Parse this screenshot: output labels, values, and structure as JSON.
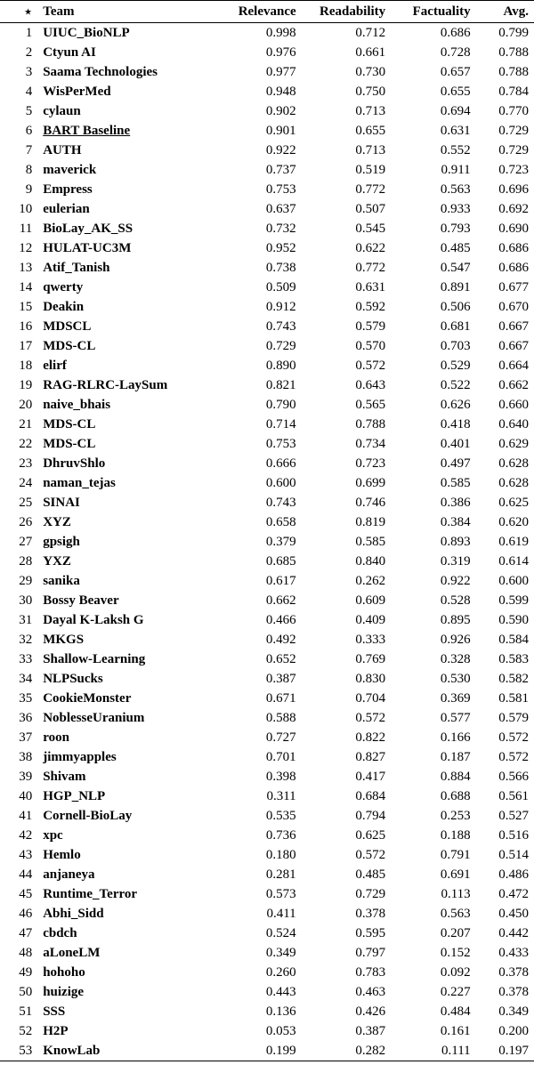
{
  "headers": {
    "rank": "⋆",
    "team": "Team",
    "relevance": "Relevance",
    "readability": "Readability",
    "factuality": "Factuality",
    "avg": "Avg."
  },
  "rows": [
    {
      "rank": "1",
      "team": "UIUC_BioNLP",
      "relevance": "0.998",
      "readability": "0.712",
      "factuality": "0.686",
      "avg": "0.799",
      "baseline": false
    },
    {
      "rank": "2",
      "team": "Ctyun AI",
      "relevance": "0.976",
      "readability": "0.661",
      "factuality": "0.728",
      "avg": "0.788",
      "baseline": false
    },
    {
      "rank": "3",
      "team": "Saama Technologies",
      "relevance": "0.977",
      "readability": "0.730",
      "factuality": "0.657",
      "avg": "0.788",
      "baseline": false
    },
    {
      "rank": "4",
      "team": "WisPerMed",
      "relevance": "0.948",
      "readability": "0.750",
      "factuality": "0.655",
      "avg": "0.784",
      "baseline": false
    },
    {
      "rank": "5",
      "team": "cylaun",
      "relevance": "0.902",
      "readability": "0.713",
      "factuality": "0.694",
      "avg": "0.770",
      "baseline": false
    },
    {
      "rank": "6",
      "team": "BART Baseline",
      "relevance": "0.901",
      "readability": "0.655",
      "factuality": "0.631",
      "avg": "0.729",
      "baseline": true
    },
    {
      "rank": "7",
      "team": "AUTH",
      "relevance": "0.922",
      "readability": "0.713",
      "factuality": "0.552",
      "avg": "0.729",
      "baseline": false
    },
    {
      "rank": "8",
      "team": "maverick",
      "relevance": "0.737",
      "readability": "0.519",
      "factuality": "0.911",
      "avg": "0.723",
      "baseline": false
    },
    {
      "rank": "9",
      "team": "Empress",
      "relevance": "0.753",
      "readability": "0.772",
      "factuality": "0.563",
      "avg": "0.696",
      "baseline": false
    },
    {
      "rank": "10",
      "team": "eulerian",
      "relevance": "0.637",
      "readability": "0.507",
      "factuality": "0.933",
      "avg": "0.692",
      "baseline": false
    },
    {
      "rank": "11",
      "team": "BioLay_AK_SS",
      "relevance": "0.732",
      "readability": "0.545",
      "factuality": "0.793",
      "avg": "0.690",
      "baseline": false
    },
    {
      "rank": "12",
      "team": "HULAT-UC3M",
      "relevance": "0.952",
      "readability": "0.622",
      "factuality": "0.485",
      "avg": "0.686",
      "baseline": false
    },
    {
      "rank": "13",
      "team": "Atif_Tanish",
      "relevance": "0.738",
      "readability": "0.772",
      "factuality": "0.547",
      "avg": "0.686",
      "baseline": false
    },
    {
      "rank": "14",
      "team": "qwerty",
      "relevance": "0.509",
      "readability": "0.631",
      "factuality": "0.891",
      "avg": "0.677",
      "baseline": false
    },
    {
      "rank": "15",
      "team": "Deakin",
      "relevance": "0.912",
      "readability": "0.592",
      "factuality": "0.506",
      "avg": "0.670",
      "baseline": false
    },
    {
      "rank": "16",
      "team": "MDSCL",
      "relevance": "0.743",
      "readability": "0.579",
      "factuality": "0.681",
      "avg": "0.667",
      "baseline": false
    },
    {
      "rank": "17",
      "team": "MDS-CL",
      "relevance": "0.729",
      "readability": "0.570",
      "factuality": "0.703",
      "avg": "0.667",
      "baseline": false
    },
    {
      "rank": "18",
      "team": "elirf",
      "relevance": "0.890",
      "readability": "0.572",
      "factuality": "0.529",
      "avg": "0.664",
      "baseline": false
    },
    {
      "rank": "19",
      "team": "RAG-RLRC-LaySum",
      "relevance": "0.821",
      "readability": "0.643",
      "factuality": "0.522",
      "avg": "0.662",
      "baseline": false
    },
    {
      "rank": "20",
      "team": "naive_bhais",
      "relevance": "0.790",
      "readability": "0.565",
      "factuality": "0.626",
      "avg": "0.660",
      "baseline": false
    },
    {
      "rank": "21",
      "team": "MDS-CL",
      "relevance": "0.714",
      "readability": "0.788",
      "factuality": "0.418",
      "avg": "0.640",
      "baseline": false
    },
    {
      "rank": "22",
      "team": "MDS-CL",
      "relevance": "0.753",
      "readability": "0.734",
      "factuality": "0.401",
      "avg": "0.629",
      "baseline": false
    },
    {
      "rank": "23",
      "team": "DhruvShlo",
      "relevance": "0.666",
      "readability": "0.723",
      "factuality": "0.497",
      "avg": "0.628",
      "baseline": false
    },
    {
      "rank": "24",
      "team": "naman_tejas",
      "relevance": "0.600",
      "readability": "0.699",
      "factuality": "0.585",
      "avg": "0.628",
      "baseline": false
    },
    {
      "rank": "25",
      "team": "SINAI",
      "relevance": "0.743",
      "readability": "0.746",
      "factuality": "0.386",
      "avg": "0.625",
      "baseline": false
    },
    {
      "rank": "26",
      "team": "XYZ",
      "relevance": "0.658",
      "readability": "0.819",
      "factuality": "0.384",
      "avg": "0.620",
      "baseline": false
    },
    {
      "rank": "27",
      "team": "gpsigh",
      "relevance": "0.379",
      "readability": "0.585",
      "factuality": "0.893",
      "avg": "0.619",
      "baseline": false
    },
    {
      "rank": "28",
      "team": "YXZ",
      "relevance": "0.685",
      "readability": "0.840",
      "factuality": "0.319",
      "avg": "0.614",
      "baseline": false
    },
    {
      "rank": "29",
      "team": "sanika",
      "relevance": "0.617",
      "readability": "0.262",
      "factuality": "0.922",
      "avg": "0.600",
      "baseline": false
    },
    {
      "rank": "30",
      "team": "Bossy Beaver",
      "relevance": "0.662",
      "readability": "0.609",
      "factuality": "0.528",
      "avg": "0.599",
      "baseline": false
    },
    {
      "rank": "31",
      "team": "Dayal K-Laksh G",
      "relevance": "0.466",
      "readability": "0.409",
      "factuality": "0.895",
      "avg": "0.590",
      "baseline": false
    },
    {
      "rank": "32",
      "team": "MKGS",
      "relevance": "0.492",
      "readability": "0.333",
      "factuality": "0.926",
      "avg": "0.584",
      "baseline": false
    },
    {
      "rank": "33",
      "team": "Shallow-Learning",
      "relevance": "0.652",
      "readability": "0.769",
      "factuality": "0.328",
      "avg": "0.583",
      "baseline": false
    },
    {
      "rank": "34",
      "team": "NLPSucks",
      "relevance": "0.387",
      "readability": "0.830",
      "factuality": "0.530",
      "avg": "0.582",
      "baseline": false
    },
    {
      "rank": "35",
      "team": "CookieMonster",
      "relevance": "0.671",
      "readability": "0.704",
      "factuality": "0.369",
      "avg": "0.581",
      "baseline": false
    },
    {
      "rank": "36",
      "team": "NoblesseUranium",
      "relevance": "0.588",
      "readability": "0.572",
      "factuality": "0.577",
      "avg": "0.579",
      "baseline": false
    },
    {
      "rank": "37",
      "team": "roon",
      "relevance": "0.727",
      "readability": "0.822",
      "factuality": "0.166",
      "avg": "0.572",
      "baseline": false
    },
    {
      "rank": "38",
      "team": "jimmyapples",
      "relevance": "0.701",
      "readability": "0.827",
      "factuality": "0.187",
      "avg": "0.572",
      "baseline": false
    },
    {
      "rank": "39",
      "team": "Shivam",
      "relevance": "0.398",
      "readability": "0.417",
      "factuality": "0.884",
      "avg": "0.566",
      "baseline": false
    },
    {
      "rank": "40",
      "team": "HGP_NLP",
      "relevance": "0.311",
      "readability": "0.684",
      "factuality": "0.688",
      "avg": "0.561",
      "baseline": false
    },
    {
      "rank": "41",
      "team": "Cornell-BioLay",
      "relevance": "0.535",
      "readability": "0.794",
      "factuality": "0.253",
      "avg": "0.527",
      "baseline": false
    },
    {
      "rank": "42",
      "team": "xpc",
      "relevance": "0.736",
      "readability": "0.625",
      "factuality": "0.188",
      "avg": "0.516",
      "baseline": false
    },
    {
      "rank": "43",
      "team": "Hemlo",
      "relevance": "0.180",
      "readability": "0.572",
      "factuality": "0.791",
      "avg": "0.514",
      "baseline": false
    },
    {
      "rank": "44",
      "team": "anjaneya",
      "relevance": "0.281",
      "readability": "0.485",
      "factuality": "0.691",
      "avg": "0.486",
      "baseline": false
    },
    {
      "rank": "45",
      "team": "Runtime_Terror",
      "relevance": "0.573",
      "readability": "0.729",
      "factuality": "0.113",
      "avg": "0.472",
      "baseline": false
    },
    {
      "rank": "46",
      "team": "Abhi_Sidd",
      "relevance": "0.411",
      "readability": "0.378",
      "factuality": "0.563",
      "avg": "0.450",
      "baseline": false
    },
    {
      "rank": "47",
      "team": "cbdch",
      "relevance": "0.524",
      "readability": "0.595",
      "factuality": "0.207",
      "avg": "0.442",
      "baseline": false
    },
    {
      "rank": "48",
      "team": "aLoneLM",
      "relevance": "0.349",
      "readability": "0.797",
      "factuality": "0.152",
      "avg": "0.433",
      "baseline": false
    },
    {
      "rank": "49",
      "team": "hohoho",
      "relevance": "0.260",
      "readability": "0.783",
      "factuality": "0.092",
      "avg": "0.378",
      "baseline": false
    },
    {
      "rank": "50",
      "team": "huizige",
      "relevance": "0.443",
      "readability": "0.463",
      "factuality": "0.227",
      "avg": "0.378",
      "baseline": false
    },
    {
      "rank": "51",
      "team": "SSS",
      "relevance": "0.136",
      "readability": "0.426",
      "factuality": "0.484",
      "avg": "0.349",
      "baseline": false
    },
    {
      "rank": "52",
      "team": "H2P",
      "relevance": "0.053",
      "readability": "0.387",
      "factuality": "0.161",
      "avg": "0.200",
      "baseline": false
    },
    {
      "rank": "53",
      "team": "KnowLab",
      "relevance": "0.199",
      "readability": "0.282",
      "factuality": "0.111",
      "avg": "0.197",
      "baseline": false
    }
  ]
}
